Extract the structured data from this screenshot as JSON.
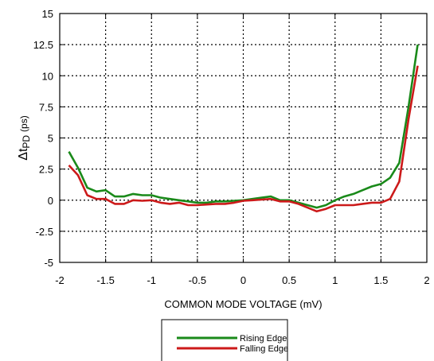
{
  "chart_data": {
    "type": "line",
    "title": "",
    "xlabel": "COMMON MODE VOLTAGE (mV)",
    "ylabel": {
      "symbol": "Δt",
      "subscript": "PD",
      "unit": "(ps)"
    },
    "xlim": [
      -2,
      2
    ],
    "ylim": [
      -5,
      15
    ],
    "x_ticks": [
      "-2",
      "-1.5",
      "-1",
      "-0.5",
      "0",
      "0.5",
      "1",
      "1.5",
      "2"
    ],
    "y_ticks": [
      "-5",
      "-2.5",
      "0",
      "2.5",
      "5",
      "7.5",
      "10",
      "12.5",
      "15"
    ],
    "grid": true,
    "grid_style": "dotted",
    "legend_position": "bottom-center, below axis",
    "series": [
      {
        "name": "Rising Edge",
        "color": "#1a8a1a",
        "x": [
          -1.9,
          -1.8,
          -1.7,
          -1.6,
          -1.5,
          -1.4,
          -1.3,
          -1.2,
          -1.1,
          -1.0,
          -0.9,
          -0.8,
          -0.7,
          -0.6,
          -0.5,
          -0.4,
          -0.3,
          -0.2,
          -0.1,
          0.0,
          0.1,
          0.2,
          0.3,
          0.4,
          0.5,
          0.6,
          0.7,
          0.8,
          0.9,
          1.0,
          1.1,
          1.2,
          1.3,
          1.4,
          1.5,
          1.6,
          1.7,
          1.8,
          1.9
        ],
        "y": [
          3.9,
          2.6,
          1.0,
          0.7,
          0.8,
          0.3,
          0.3,
          0.5,
          0.4,
          0.4,
          0.2,
          0.1,
          0.0,
          -0.1,
          -0.2,
          -0.2,
          -0.1,
          -0.1,
          -0.05,
          0.0,
          0.1,
          0.2,
          0.3,
          0.0,
          0.0,
          -0.2,
          -0.4,
          -0.6,
          -0.4,
          0.0,
          0.3,
          0.5,
          0.8,
          1.1,
          1.3,
          1.8,
          3.0,
          7.5,
          12.5
        ]
      },
      {
        "name": "Falling Edge",
        "color": "#cc1a1a",
        "x": [
          -1.9,
          -1.8,
          -1.7,
          -1.6,
          -1.5,
          -1.4,
          -1.3,
          -1.2,
          -1.1,
          -1.0,
          -0.9,
          -0.8,
          -0.7,
          -0.6,
          -0.5,
          -0.4,
          -0.3,
          -0.2,
          -0.1,
          0.0,
          0.1,
          0.2,
          0.3,
          0.4,
          0.5,
          0.6,
          0.7,
          0.8,
          0.9,
          1.0,
          1.1,
          1.2,
          1.3,
          1.4,
          1.5,
          1.6,
          1.7,
          1.8,
          1.9
        ],
        "y": [
          2.8,
          2.0,
          0.4,
          0.1,
          0.1,
          -0.3,
          -0.3,
          0.0,
          -0.05,
          0.0,
          -0.2,
          -0.3,
          -0.2,
          -0.4,
          -0.4,
          -0.35,
          -0.3,
          -0.3,
          -0.2,
          -0.05,
          0.0,
          0.05,
          0.1,
          -0.1,
          -0.1,
          -0.3,
          -0.6,
          -0.9,
          -0.7,
          -0.4,
          -0.4,
          -0.4,
          -0.3,
          -0.2,
          -0.2,
          0.1,
          1.5,
          6.5,
          10.8
        ]
      }
    ]
  }
}
